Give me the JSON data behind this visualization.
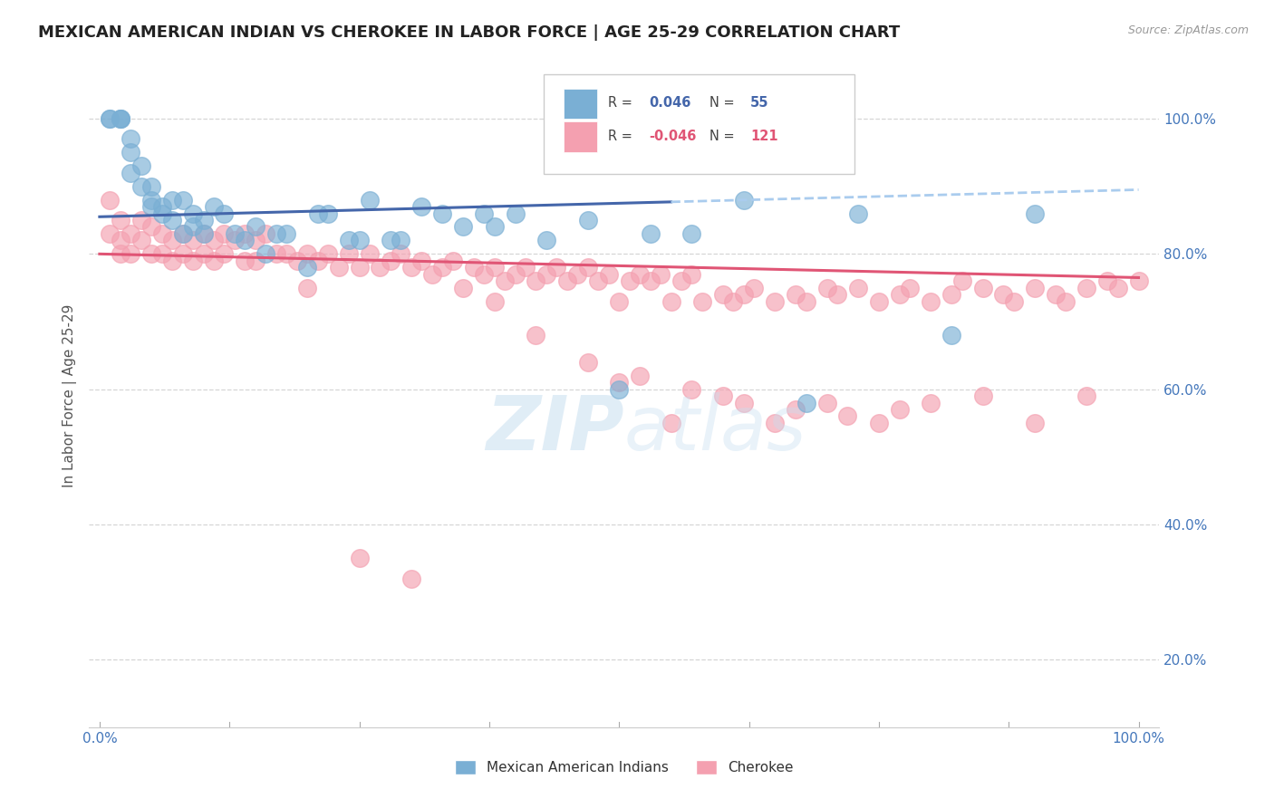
{
  "title": "MEXICAN AMERICAN INDIAN VS CHEROKEE IN LABOR FORCE | AGE 25-29 CORRELATION CHART",
  "source_text": "Source: ZipAtlas.com",
  "ylabel": "In Labor Force | Age 25-29",
  "background_color": "#ffffff",
  "blue_color": "#7aafd4",
  "pink_color": "#f4a0b0",
  "blue_line_color": "#4466aa",
  "pink_line_color": "#e05575",
  "blue_dash_color": "#aaccee",
  "grid_color": "#cccccc",
  "R_blue": "0.046",
  "N_blue": "55",
  "R_pink": "-0.046",
  "N_pink": "121",
  "ytick_vals": [
    0.2,
    0.4,
    0.6,
    0.8,
    1.0
  ],
  "ytick_labels": [
    "20.0%",
    "40.0%",
    "60.0%",
    "80.0%",
    "100.0%"
  ],
  "ylim": [
    0.1,
    1.08
  ],
  "xlim": [
    -0.01,
    1.02
  ],
  "blue_x": [
    0.01,
    0.01,
    0.02,
    0.02,
    0.02,
    0.03,
    0.03,
    0.03,
    0.04,
    0.04,
    0.05,
    0.05,
    0.05,
    0.06,
    0.06,
    0.07,
    0.07,
    0.08,
    0.08,
    0.09,
    0.09,
    0.1,
    0.1,
    0.11,
    0.12,
    0.13,
    0.14,
    0.15,
    0.16,
    0.17,
    0.18,
    0.2,
    0.21,
    0.22,
    0.24,
    0.25,
    0.26,
    0.28,
    0.29,
    0.31,
    0.33,
    0.35,
    0.37,
    0.38,
    0.4,
    0.43,
    0.47,
    0.5,
    0.53,
    0.57,
    0.62,
    0.68,
    0.73,
    0.82,
    0.9
  ],
  "blue_y": [
    1.0,
    1.0,
    1.0,
    1.0,
    1.0,
    0.97,
    0.95,
    0.92,
    0.93,
    0.9,
    0.9,
    0.88,
    0.87,
    0.87,
    0.86,
    0.88,
    0.85,
    0.88,
    0.83,
    0.86,
    0.84,
    0.85,
    0.83,
    0.87,
    0.86,
    0.83,
    0.82,
    0.84,
    0.8,
    0.83,
    0.83,
    0.78,
    0.86,
    0.86,
    0.82,
    0.82,
    0.88,
    0.82,
    0.82,
    0.87,
    0.86,
    0.84,
    0.86,
    0.84,
    0.86,
    0.82,
    0.85,
    0.6,
    0.83,
    0.83,
    0.88,
    0.58,
    0.86,
    0.68,
    0.86
  ],
  "pink_x": [
    0.01,
    0.01,
    0.02,
    0.02,
    0.02,
    0.03,
    0.03,
    0.04,
    0.04,
    0.05,
    0.05,
    0.06,
    0.06,
    0.07,
    0.07,
    0.08,
    0.08,
    0.09,
    0.09,
    0.1,
    0.1,
    0.11,
    0.11,
    0.12,
    0.12,
    0.13,
    0.14,
    0.14,
    0.15,
    0.15,
    0.16,
    0.17,
    0.18,
    0.19,
    0.2,
    0.2,
    0.21,
    0.22,
    0.23,
    0.24,
    0.25,
    0.26,
    0.27,
    0.28,
    0.29,
    0.3,
    0.31,
    0.32,
    0.33,
    0.34,
    0.35,
    0.36,
    0.37,
    0.38,
    0.39,
    0.4,
    0.41,
    0.42,
    0.43,
    0.44,
    0.45,
    0.46,
    0.47,
    0.48,
    0.49,
    0.5,
    0.51,
    0.52,
    0.53,
    0.54,
    0.55,
    0.56,
    0.57,
    0.58,
    0.6,
    0.61,
    0.62,
    0.63,
    0.65,
    0.67,
    0.68,
    0.7,
    0.71,
    0.73,
    0.75,
    0.77,
    0.78,
    0.8,
    0.82,
    0.83,
    0.85,
    0.87,
    0.88,
    0.9,
    0.92,
    0.93,
    0.95,
    0.97,
    0.98,
    1.0,
    0.5,
    0.55,
    0.6,
    0.65,
    0.7,
    0.75,
    0.8,
    0.85,
    0.9,
    0.95,
    0.38,
    0.42,
    0.47,
    0.52,
    0.57,
    0.62,
    0.67,
    0.72,
    0.77,
    0.25,
    0.3
  ],
  "pink_y": [
    0.88,
    0.83,
    0.85,
    0.82,
    0.8,
    0.83,
    0.8,
    0.85,
    0.82,
    0.84,
    0.8,
    0.83,
    0.8,
    0.82,
    0.79,
    0.83,
    0.8,
    0.82,
    0.79,
    0.83,
    0.8,
    0.82,
    0.79,
    0.83,
    0.8,
    0.82,
    0.83,
    0.79,
    0.82,
    0.79,
    0.83,
    0.8,
    0.8,
    0.79,
    0.8,
    0.75,
    0.79,
    0.8,
    0.78,
    0.8,
    0.78,
    0.8,
    0.78,
    0.79,
    0.8,
    0.78,
    0.79,
    0.77,
    0.78,
    0.79,
    0.75,
    0.78,
    0.77,
    0.78,
    0.76,
    0.77,
    0.78,
    0.76,
    0.77,
    0.78,
    0.76,
    0.77,
    0.78,
    0.76,
    0.77,
    0.73,
    0.76,
    0.77,
    0.76,
    0.77,
    0.73,
    0.76,
    0.77,
    0.73,
    0.74,
    0.73,
    0.74,
    0.75,
    0.73,
    0.74,
    0.73,
    0.75,
    0.74,
    0.75,
    0.73,
    0.74,
    0.75,
    0.73,
    0.74,
    0.76,
    0.75,
    0.74,
    0.73,
    0.75,
    0.74,
    0.73,
    0.75,
    0.76,
    0.75,
    0.76,
    0.61,
    0.55,
    0.59,
    0.55,
    0.58,
    0.55,
    0.58,
    0.59,
    0.55,
    0.59,
    0.73,
    0.68,
    0.64,
    0.62,
    0.6,
    0.58,
    0.57,
    0.56,
    0.57,
    0.35,
    0.32
  ]
}
